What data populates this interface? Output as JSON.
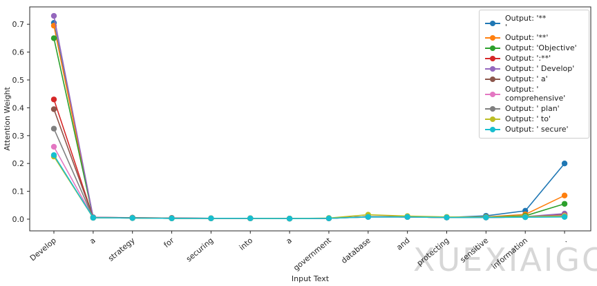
{
  "watermark": "XUEXIAIGC",
  "chart_data": {
    "type": "line",
    "title": "",
    "xlabel": "Input Text",
    "ylabel": "Attention Weight",
    "categories": [
      "Develop",
      "a",
      "strategy",
      "for",
      "securing",
      "into",
      "a",
      "government",
      "database",
      "and",
      "protecting",
      "sensitive",
      "information",
      "."
    ],
    "yticks": [
      0.0,
      0.1,
      0.2,
      0.3,
      0.4,
      0.5,
      0.6,
      0.7
    ],
    "ylim": [
      -0.04,
      0.76
    ],
    "grid": false,
    "legend_position": "upper right",
    "marker": "circle",
    "series": [
      {
        "name": "Output: '**\n'",
        "color": "#1f77b4",
        "values": [
          0.705,
          0.005,
          0.004,
          0.003,
          0.003,
          0.003,
          0.002,
          0.003,
          0.008,
          0.008,
          0.006,
          0.012,
          0.03,
          0.2
        ]
      },
      {
        "name": "Output: '**'",
        "color": "#ff7f0e",
        "values": [
          0.695,
          0.005,
          0.004,
          0.003,
          0.003,
          0.003,
          0.002,
          0.003,
          0.009,
          0.008,
          0.006,
          0.008,
          0.017,
          0.085
        ]
      },
      {
        "name": "Output: 'Objective'",
        "color": "#2ca02c",
        "values": [
          0.65,
          0.006,
          0.005,
          0.003,
          0.003,
          0.003,
          0.002,
          0.003,
          0.009,
          0.008,
          0.006,
          0.007,
          0.012,
          0.055
        ]
      },
      {
        "name": "Output: ':**'",
        "color": "#d62728",
        "values": [
          0.43,
          0.006,
          0.005,
          0.004,
          0.003,
          0.003,
          0.002,
          0.003,
          0.009,
          0.008,
          0.006,
          0.006,
          0.008,
          0.016
        ]
      },
      {
        "name": "Output: ' Develop'",
        "color": "#9467bd",
        "values": [
          0.73,
          0.007,
          0.005,
          0.004,
          0.003,
          0.003,
          0.002,
          0.003,
          0.008,
          0.008,
          0.006,
          0.006,
          0.009,
          0.02
        ]
      },
      {
        "name": "Output: ' a'",
        "color": "#8c564b",
        "values": [
          0.395,
          0.006,
          0.005,
          0.004,
          0.003,
          0.003,
          0.002,
          0.003,
          0.009,
          0.009,
          0.007,
          0.006,
          0.008,
          0.015
        ]
      },
      {
        "name": "Output: ' comprehensive'",
        "color": "#e377c2",
        "values": [
          0.26,
          0.005,
          0.004,
          0.003,
          0.003,
          0.003,
          0.002,
          0.003,
          0.008,
          0.008,
          0.006,
          0.006,
          0.008,
          0.013
        ]
      },
      {
        "name": "Output: ' plan'",
        "color": "#7f7f7f",
        "values": [
          0.325,
          0.005,
          0.004,
          0.003,
          0.003,
          0.003,
          0.002,
          0.003,
          0.009,
          0.008,
          0.006,
          0.006,
          0.008,
          0.011
        ]
      },
      {
        "name": "Output: ' to'",
        "color": "#bcbd22",
        "values": [
          0.225,
          0.005,
          0.004,
          0.003,
          0.003,
          0.003,
          0.002,
          0.004,
          0.016,
          0.011,
          0.008,
          0.007,
          0.009,
          0.011
        ]
      },
      {
        "name": "Output: ' secure'",
        "color": "#17becf",
        "values": [
          0.23,
          0.005,
          0.004,
          0.003,
          0.003,
          0.003,
          0.002,
          0.003,
          0.008,
          0.008,
          0.006,
          0.006,
          0.007,
          0.008
        ]
      }
    ]
  }
}
